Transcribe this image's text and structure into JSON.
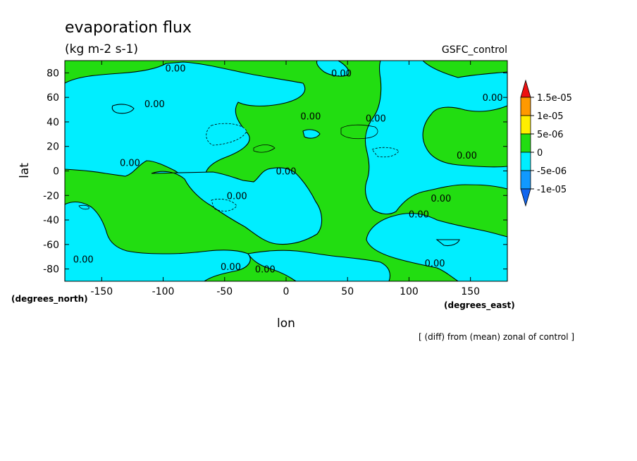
{
  "chart_data": {
    "type": "heatmap",
    "title": "evaporation flux",
    "subtitle": "(kg m-2 s-1)",
    "run_label": "GSFC_control",
    "xlabel": "lon",
    "ylabel": "lat",
    "x_units": "(degrees_east)",
    "y_units": "(degrees_north)",
    "xlim": [
      -180,
      180
    ],
    "ylim": [
      -90,
      90
    ],
    "x_ticks": [
      -150,
      -100,
      -50,
      0,
      50,
      100,
      150
    ],
    "y_ticks": [
      80,
      60,
      40,
      20,
      0,
      -20,
      -40,
      -60,
      -80
    ],
    "x_tick_labels": [
      "-150",
      "-100",
      "-50",
      "0",
      "50",
      "100",
      "150"
    ],
    "y_tick_labels": [
      "80",
      "60",
      "40",
      "20",
      "0",
      "-20",
      "-40",
      "-60",
      "-80"
    ],
    "footnote": "[ (diff) from (mean) zonal of control ]",
    "contour_label": "0.00",
    "contour_labels": [
      {
        "text": "0.00",
        "lon": -90,
        "lat": 84
      },
      {
        "text": "0.00",
        "lon": 45,
        "lat": 80
      },
      {
        "text": "0.00",
        "lon": -107,
        "lat": 55
      },
      {
        "text": "0.00",
        "lon": 20,
        "lat": 45
      },
      {
        "text": "0.00",
        "lon": 168,
        "lat": 60
      },
      {
        "text": "0.00",
        "lon": 73,
        "lat": 43
      },
      {
        "text": "0.00",
        "lon": 147,
        "lat": 13
      },
      {
        "text": "0.00",
        "lon": -127,
        "lat": 7
      },
      {
        "text": "0.00",
        "lon": 0,
        "lat": 0
      },
      {
        "text": "0.00",
        "lon": -40,
        "lat": -20
      },
      {
        "text": "0.00",
        "lon": 126,
        "lat": -22
      },
      {
        "text": "0.00",
        "lon": 108,
        "lat": -35
      },
      {
        "text": "0.00",
        "lon": -45,
        "lat": -78
      },
      {
        "text": "0.00",
        "lon": -17,
        "lat": -80
      },
      {
        "text": "0.00",
        "lon": 121,
        "lat": -75
      },
      {
        "text": "0.00",
        "lon": -165,
        "lat": -72
      }
    ],
    "colorbar": {
      "labels": [
        "1.5e-05",
        "1e-05",
        "5e-06",
        "0",
        "-5e-06",
        "-1e-05"
      ],
      "colors": [
        "#ee1111",
        "#ff9900",
        "#ffee00",
        "#22dd11",
        "#00eeff",
        "#1199ff",
        "#1166ee"
      ]
    }
  }
}
